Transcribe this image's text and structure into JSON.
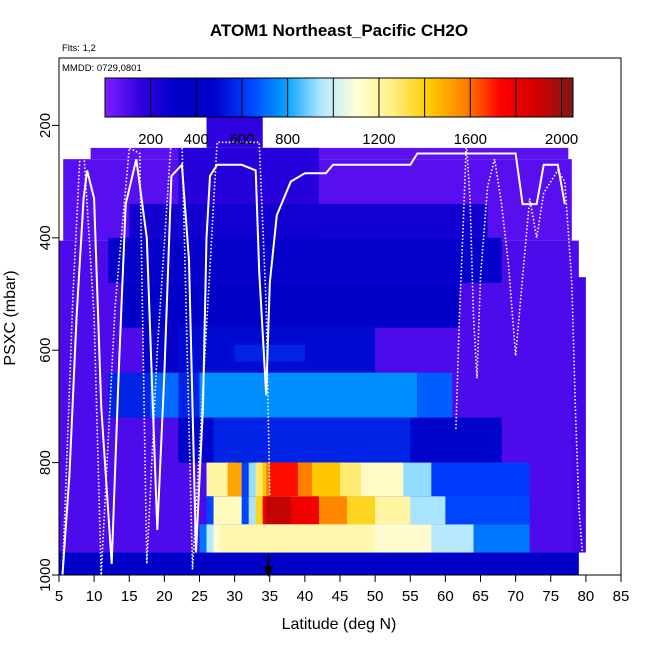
{
  "chart_data": {
    "type": "heatmap",
    "title": "ATOM1 Northeast_Pacific CH2O",
    "flights_label": "Flts: 1,2",
    "dates_label": "MMDD: 0729,0801",
    "xlabel": "Latitude (deg N)",
    "ylabel": "PSXC (mbar)",
    "xlim": [
      5,
      85
    ],
    "ylim": [
      1000,
      80
    ],
    "x_ticks": [
      5,
      10,
      15,
      20,
      25,
      30,
      35,
      40,
      45,
      50,
      55,
      60,
      65,
      70,
      75,
      80,
      85
    ],
    "y_ticks": [
      200,
      400,
      600,
      800,
      1000
    ],
    "colorbar": {
      "range": [
        0,
        2050
      ],
      "ticks": [
        200,
        400,
        600,
        800,
        1200,
        1600,
        2000
      ],
      "boundaries": [
        200,
        400,
        600,
        800,
        1000,
        1200,
        1400,
        1600,
        1800,
        2000
      ],
      "colors": [
        "#7f1fff",
        "#3000e0",
        "#0000c8",
        "#0000c8",
        "#0040ff",
        "#00a0ff",
        "#b0e8ff",
        "#ffffd8",
        "#ffee80",
        "#ffcc00",
        "#ff8000",
        "#ff0000",
        "#d00000",
        "#801818"
      ]
    },
    "marker_latitude": 34.8,
    "grid": [
      {
        "x": [
          5,
          79
        ],
        "p": [
          405,
          960
        ],
        "v": 100
      },
      {
        "x": [
          5.6,
          78
        ],
        "p": [
          260,
          405
        ],
        "v": 80
      },
      {
        "x": [
          9.5,
          77.5
        ],
        "p": [
          240,
          260
        ],
        "v": 70
      },
      {
        "x": [
          26,
          34
        ],
        "p": [
          165,
          240
        ],
        "v": 160
      },
      {
        "x": [
          78,
          80
        ],
        "p": [
          470,
          960
        ],
        "v": 120
      },
      {
        "x": [
          22,
          42
        ],
        "p": [
          240,
          400
        ],
        "v": 190
      },
      {
        "x": [
          15,
          66
        ],
        "p": [
          340,
          400
        ],
        "v": 260
      },
      {
        "x": [
          12,
          68
        ],
        "p": [
          400,
          480
        ],
        "v": 300
      },
      {
        "x": [
          5,
          79
        ],
        "p": [
          960,
          1000
        ],
        "v": 320
      },
      {
        "x": [
          14,
          62
        ],
        "p": [
          480,
          560
        ],
        "v": 360
      },
      {
        "x": [
          17,
          22
        ],
        "p": [
          560,
          640
        ],
        "v": 300
      },
      {
        "x": [
          22,
          50
        ],
        "p": [
          560,
          640
        ],
        "v": 500
      },
      {
        "x": [
          30,
          40
        ],
        "p": [
          590,
          620
        ],
        "v": 560
      },
      {
        "x": [
          12,
          25
        ],
        "p": [
          640,
          720
        ],
        "v": 560
      },
      {
        "x": [
          18,
          22
        ],
        "p": [
          640,
          720
        ],
        "v": 700
      },
      {
        "x": [
          25,
          56
        ],
        "p": [
          640,
          720
        ],
        "v": 760
      },
      {
        "x": [
          56,
          61
        ],
        "p": [
          640,
          720
        ],
        "v": 680
      },
      {
        "x": [
          22,
          68
        ],
        "p": [
          720,
          800
        ],
        "v": 480
      },
      {
        "x": [
          27,
          55
        ],
        "p": [
          720,
          800
        ],
        "v": 560
      },
      {
        "x": [
          27,
          72
        ],
        "p": [
          800,
          860
        ],
        "v": 620
      },
      {
        "x": [
          32,
          58
        ],
        "p": [
          800,
          860
        ],
        "v": 920
      },
      {
        "x": [
          33,
          54
        ],
        "p": [
          800,
          860
        ],
        "v": 1140
      },
      {
        "x": [
          33,
          48
        ],
        "p": [
          800,
          860
        ],
        "v": 1280
      },
      {
        "x": [
          34,
          45
        ],
        "p": [
          800,
          860
        ],
        "v": 1430
      },
      {
        "x": [
          34.5,
          41
        ],
        "p": [
          800,
          860
        ],
        "v": 1580
      },
      {
        "x": [
          35,
          39
        ],
        "p": [
          800,
          860
        ],
        "v": 1720
      },
      {
        "x": [
          26,
          30
        ],
        "p": [
          800,
          860
        ],
        "v": 1200
      },
      {
        "x": [
          29,
          31
        ],
        "p": [
          800,
          860
        ],
        "v": 1500
      },
      {
        "x": [
          26,
          72
        ],
        "p": [
          860,
          910
        ],
        "v": 640
      },
      {
        "x": [
          32,
          60
        ],
        "p": [
          860,
          910
        ],
        "v": 940
      },
      {
        "x": [
          33,
          55
        ],
        "p": [
          860,
          910
        ],
        "v": 1200
      },
      {
        "x": [
          33,
          50
        ],
        "p": [
          860,
          910
        ],
        "v": 1380
      },
      {
        "x": [
          34,
          46
        ],
        "p": [
          860,
          910
        ],
        "v": 1560
      },
      {
        "x": [
          34,
          42
        ],
        "p": [
          860,
          910
        ],
        "v": 1780
      },
      {
        "x": [
          34.5,
          38
        ],
        "p": [
          860,
          910
        ],
        "v": 1920
      },
      {
        "x": [
          27,
          31
        ],
        "p": [
          860,
          910
        ],
        "v": 1150
      },
      {
        "x": [
          25,
          72
        ],
        "p": [
          910,
          960
        ],
        "v": 720
      },
      {
        "x": [
          26,
          64
        ],
        "p": [
          910,
          960
        ],
        "v": 960
      },
      {
        "x": [
          27,
          58
        ],
        "p": [
          910,
          960
        ],
        "v": 1120
      },
      {
        "x": [
          28,
          50
        ],
        "p": [
          910,
          960
        ],
        "v": 1180
      }
    ],
    "ceiling_x": [
      5.5,
      6.5,
      7.5,
      8.5,
      9.0,
      10.0,
      11.0,
      12.5,
      13.5,
      14.5,
      16.0,
      17.5,
      19.0,
      20.0,
      21.0,
      22.5,
      23.5,
      24.5,
      25.5,
      26.0,
      26.5,
      27.5,
      29.0,
      31.0,
      33.0,
      33.5,
      34.5,
      35.0,
      36.0,
      38.0,
      40.0,
      43.0,
      44.0,
      46.0,
      55.0,
      56.0,
      60.0,
      70.0,
      71.0,
      73.0,
      74.0,
      76.0,
      77.0
    ],
    "ceiling_p": [
      1000,
      820,
      540,
      330,
      280,
      330,
      700,
      980,
      640,
      340,
      260,
      400,
      920,
      640,
      290,
      270,
      440,
      960,
      700,
      400,
      290,
      270,
      270,
      270,
      280,
      460,
      680,
      480,
      360,
      300,
      285,
      285,
      270,
      270,
      270,
      250,
      250,
      250,
      340,
      340,
      270,
      270,
      340
    ],
    "descent_x": [
      5.5,
      7.0,
      8.0,
      8.5,
      10.0,
      11.0,
      13.0,
      15.0,
      16.5,
      17.5,
      19.0,
      21.0,
      22.5,
      24.0,
      26.0,
      27.5,
      33.5,
      34.5,
      35.0
    ],
    "descent_p": [
      1000,
      500,
      250,
      240,
      540,
      1000,
      520,
      240,
      250,
      980,
      600,
      220,
      220,
      990,
      560,
      230,
      230,
      520,
      860
    ],
    "trace_b_x": [
      61.5,
      62.0,
      62.5,
      63.0,
      63.5,
      64.0,
      64.5,
      65.0,
      66.0,
      67.0,
      68.0,
      69.0,
      70.0,
      71.0,
      72.0,
      73.0,
      74.0,
      75.0,
      76.0,
      77.0,
      78.0,
      78.5,
      79.0,
      79.5
    ],
    "trace_b_p": [
      740,
      540,
      390,
      230,
      330,
      540,
      650,
      470,
      310,
      260,
      340,
      450,
      610,
      470,
      330,
      400,
      320,
      300,
      280,
      300,
      480,
      700,
      880,
      960
    ]
  }
}
